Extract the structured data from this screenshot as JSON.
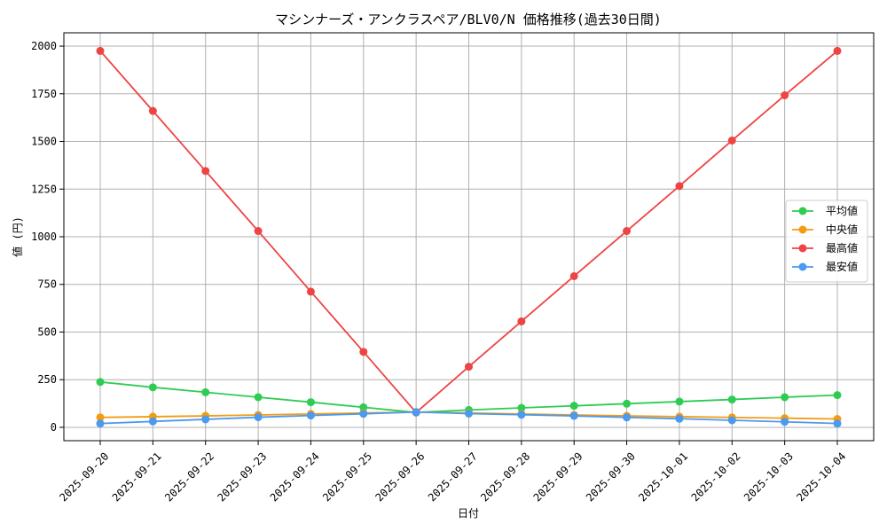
{
  "chart_data": {
    "type": "line",
    "title": "マシンナーズ・アンクラスペア/BLV0/N 価格推移(過去30日間)",
    "xlabel": "日付",
    "ylabel": "値 (円)",
    "ylim": [
      -70,
      2070
    ],
    "yticks": [
      0,
      250,
      500,
      750,
      1000,
      1250,
      1500,
      1750,
      2000
    ],
    "grid": true,
    "legend_position": "center-right",
    "categories": [
      "2025-09-20",
      "2025-09-21",
      "2025-09-22",
      "2025-09-23",
      "2025-09-24",
      "2025-09-25",
      "2025-09-26",
      "2025-09-27",
      "2025-09-28",
      "2025-09-29",
      "2025-09-30",
      "2025-10-01",
      "2025-10-02",
      "2025-10-03",
      "2025-10-04"
    ],
    "series": [
      {
        "name": "平均値",
        "color": "#2ecc52",
        "values": [
          238,
          210,
          184,
          158,
          132,
          105,
          78,
          91,
          102,
          113,
          124,
          135,
          146,
          158,
          169
        ]
      },
      {
        "name": "中央値",
        "color": "#f39c12",
        "values": [
          52,
          56,
          60,
          65,
          70,
          75,
          80,
          75,
          70,
          65,
          60,
          56,
          52,
          48,
          44
        ]
      },
      {
        "name": "最高値",
        "color": "#ee4444",
        "values": [
          1975,
          1660,
          1345,
          1030,
          712,
          396,
          78,
          318,
          556,
          793,
          1030,
          1266,
          1505,
          1742,
          1975
        ]
      },
      {
        "name": "最安値",
        "color": "#4a9af0",
        "values": [
          20,
          31,
          42,
          53,
          62,
          71,
          80,
          72,
          66,
          60,
          52,
          45,
          37,
          29,
          20
        ]
      }
    ]
  }
}
